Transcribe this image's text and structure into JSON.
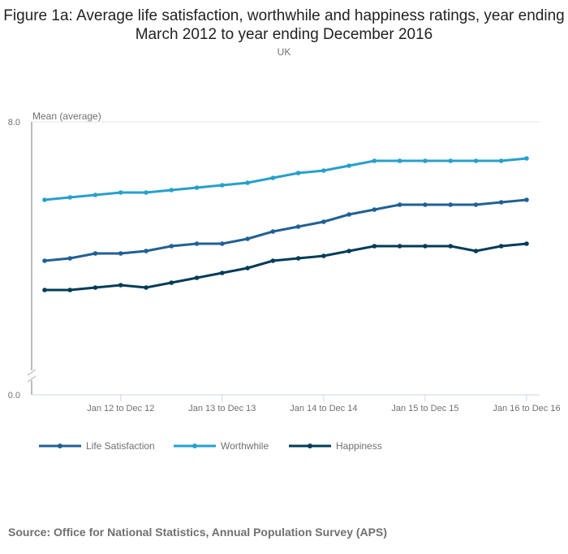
{
  "chart_data": {
    "type": "line",
    "title": "Figure 1a: Average life satisfaction, worthwhile and happiness ratings, year ending March 2012 to year ending December 2016",
    "subtitle": "UK",
    "ylabel": "Mean (average)",
    "xlabel": "",
    "ylim": [
      0,
      8
    ],
    "y_axis_break": true,
    "y_ticks": [
      "0.0",
      "8.0"
    ],
    "x_tick_labels": [
      {
        "index": 3,
        "label": "Jan 12 to Dec 12"
      },
      {
        "index": 7,
        "label": "Jan 13 to Dec 13"
      },
      {
        "index": 11,
        "label": "Jan 14 to Dec 14"
      },
      {
        "index": 15,
        "label": "Jan 15 to Dec 15"
      },
      {
        "index": 19,
        "label": "Jan 16 to Dec 16"
      }
    ],
    "grid": "top line only",
    "legend_position": "bottom",
    "series": [
      {
        "name": "Life Satisfaction",
        "color": "#206095",
        "values": [
          7.43,
          7.44,
          7.46,
          7.46,
          7.47,
          7.49,
          7.5,
          7.5,
          7.52,
          7.55,
          7.57,
          7.59,
          7.62,
          7.64,
          7.66,
          7.66,
          7.66,
          7.66,
          7.67,
          7.68
        ]
      },
      {
        "name": "Worthwhile",
        "color": "#27a0cc",
        "values": [
          7.68,
          7.69,
          7.7,
          7.71,
          7.71,
          7.72,
          7.73,
          7.74,
          7.75,
          7.77,
          7.79,
          7.8,
          7.82,
          7.84,
          7.84,
          7.84,
          7.84,
          7.84,
          7.84,
          7.85
        ]
      },
      {
        "name": "Happiness",
        "color": "#003c57",
        "values": [
          7.31,
          7.31,
          7.32,
          7.33,
          7.32,
          7.34,
          7.36,
          7.38,
          7.4,
          7.43,
          7.44,
          7.45,
          7.47,
          7.49,
          7.49,
          7.49,
          7.49,
          7.47,
          7.49,
          7.5
        ]
      }
    ]
  },
  "source": "Source: Office for National Statistics, Annual Population Survey (APS)"
}
